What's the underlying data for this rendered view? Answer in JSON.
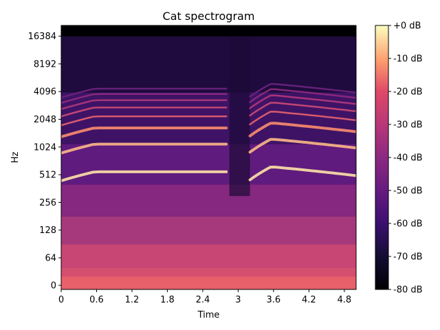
{
  "chart_data": {
    "type": "heatmap",
    "title": "Cat spectrogram",
    "xlabel": "Time",
    "ylabel": "Hz",
    "y_scale": "log2-like",
    "xlim": [
      0,
      5.0
    ],
    "x_ticks": [
      {
        "value": 0,
        "label": "0"
      },
      {
        "value": 0.6,
        "label": "0.6"
      },
      {
        "value": 1.2,
        "label": "1.2"
      },
      {
        "value": 1.8,
        "label": "1.8"
      },
      {
        "value": 2.4,
        "label": "2.4"
      },
      {
        "value": 3,
        "label": "3"
      },
      {
        "value": 3.6,
        "label": "3.6"
      },
      {
        "value": 4.2,
        "label": "4.2"
      },
      {
        "value": 4.8,
        "label": "4.8"
      }
    ],
    "y_ticks": [
      {
        "value": 0,
        "label": "0"
      },
      {
        "value": 64,
        "label": "64"
      },
      {
        "value": 128,
        "label": "128"
      },
      {
        "value": 256,
        "label": "256"
      },
      {
        "value": 512,
        "label": "512"
      },
      {
        "value": 1024,
        "label": "1024"
      },
      {
        "value": 2048,
        "label": "2048"
      },
      {
        "value": 4096,
        "label": "4096"
      },
      {
        "value": 8192,
        "label": "8192"
      },
      {
        "value": 16384,
        "label": "16384"
      }
    ],
    "colorbar": {
      "colormap": "magma",
      "range": [
        -80,
        0
      ],
      "ticks": [
        {
          "value": 0,
          "label": "+0 dB"
        },
        {
          "value": -10,
          "label": "-10 dB"
        },
        {
          "value": -20,
          "label": "-20 dB"
        },
        {
          "value": -30,
          "label": "-30 dB"
        },
        {
          "value": -40,
          "label": "-40 dB"
        },
        {
          "value": -50,
          "label": "-50 dB"
        },
        {
          "value": -60,
          "label": "-60 dB"
        },
        {
          "value": -70,
          "label": "-70 dB"
        },
        {
          "value": -80,
          "label": "-80 dB"
        }
      ]
    },
    "segments": [
      {
        "t_start": 0.0,
        "t_end": 2.8,
        "fundamental_hz_start": 880,
        "fundamental_hz_peak": 1100,
        "fundamental_hz_end": 1100
      },
      {
        "t_start": 3.2,
        "t_end": 5.0,
        "fundamental_hz_start": 900,
        "fundamental_hz_peak": 1250,
        "fundamental_hz_end": 1000
      }
    ]
  }
}
